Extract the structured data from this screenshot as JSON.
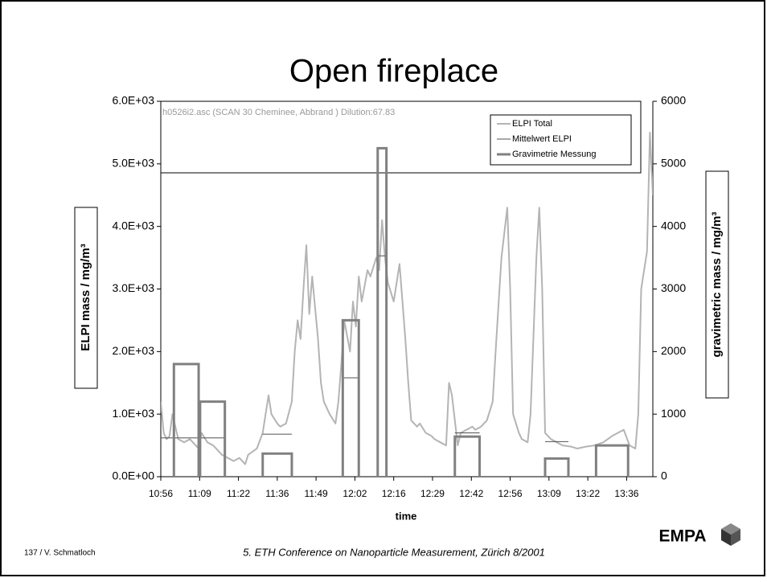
{
  "slide": {
    "title": "Open fireplace",
    "footer_left": "137 / V. Schmatloch",
    "footer_center": "5. ETH Conference on Nanoparticle Measurement, Zürich 8/2001",
    "logo_text": "EMPA"
  },
  "chart_data": {
    "type": "line",
    "annotation": "h0526i2.asc (SCAN 30 Cheminee, Abbrand ) Dilution:67.83",
    "x_label": "time",
    "y_label": "ELPI mass / mg/m³",
    "y2_label": "gravimetric mass / mg/m³",
    "xlim": [
      656,
      825
    ],
    "xticks": [
      {
        "value": 656,
        "label": "10:56"
      },
      {
        "value": 669.33,
        "label": "11:09"
      },
      {
        "value": 682.67,
        "label": "11:22"
      },
      {
        "value": 696,
        "label": "11:36"
      },
      {
        "value": 709.33,
        "label": "11:49"
      },
      {
        "value": 722.67,
        "label": "12:02"
      },
      {
        "value": 736,
        "label": "12:16"
      },
      {
        "value": 749.33,
        "label": "12:29"
      },
      {
        "value": 762.67,
        "label": "12:42"
      },
      {
        "value": 776,
        "label": "12:56"
      },
      {
        "value": 789.33,
        "label": "13:09"
      },
      {
        "value": 802.67,
        "label": "13:22"
      },
      {
        "value": 816,
        "label": "13:36"
      }
    ],
    "ylim": [
      0,
      6000
    ],
    "yticks": [
      {
        "value": 0,
        "label": "0.0E+00"
      },
      {
        "value": 1000,
        "label": "1.0E+03"
      },
      {
        "value": 2000,
        "label": "2.0E+03"
      },
      {
        "value": 3000,
        "label": "3.0E+03"
      },
      {
        "value": 4000,
        "label": "4.0E+03"
      },
      {
        "value": 5000,
        "label": "5.0E+03"
      },
      {
        "value": 6000,
        "label": "6.0E+03"
      }
    ],
    "y2lim": [
      0,
      6000
    ],
    "y2ticks": [
      0,
      1000,
      2000,
      3000,
      4000,
      5000,
      6000
    ],
    "legend": "top-right",
    "series": [
      {
        "name": "ELPI Total",
        "color": "#b4b4b4",
        "style": "line",
        "x": [
          656,
          657,
          658,
          659,
          660,
          662,
          664,
          666,
          668,
          669,
          670,
          672,
          674,
          675,
          677,
          679,
          681,
          683,
          685,
          686,
          689,
          691,
          693,
          694,
          696,
          697,
          699,
          701,
          702,
          703,
          704,
          705,
          706,
          707,
          708,
          710,
          711,
          712,
          714,
          716,
          717,
          718,
          719,
          721,
          722,
          723,
          724,
          725,
          727,
          728,
          730,
          731,
          732,
          733,
          734,
          736,
          738,
          739,
          740,
          741,
          742,
          744,
          745,
          747,
          749,
          750,
          752,
          754,
          755,
          756,
          758,
          759,
          761,
          763,
          764,
          766,
          768,
          770,
          771,
          773,
          775,
          776,
          777,
          779,
          780,
          782,
          783,
          785,
          786,
          787,
          788,
          790,
          792,
          794,
          797,
          799,
          802,
          805,
          808,
          811,
          813,
          815,
          817,
          819,
          820,
          821,
          823,
          824,
          825
        ],
        "values": [
          1200,
          700,
          600,
          650,
          1000,
          600,
          550,
          600,
          500,
          450,
          700,
          550,
          500,
          450,
          350,
          300,
          250,
          300,
          200,
          350,
          450,
          700,
          1300,
          1000,
          850,
          800,
          850,
          1200,
          2000,
          2500,
          2200,
          3000,
          3700,
          2600,
          3200,
          2200,
          1500,
          1200,
          1000,
          850,
          1200,
          1800,
          2500,
          2000,
          2800,
          2400,
          3200,
          2800,
          3300,
          3200,
          3500,
          3300,
          4100,
          3500,
          3100,
          2800,
          3400,
          2800,
          2200,
          1500,
          900,
          800,
          850,
          700,
          650,
          600,
          550,
          500,
          1500,
          1300,
          500,
          700,
          750,
          800,
          750,
          800,
          900,
          1200,
          2000,
          3500,
          4300,
          3000,
          1000,
          700,
          600,
          550,
          1000,
          3500,
          4300,
          3000,
          700,
          600,
          550,
          500,
          480,
          450,
          480,
          500,
          550,
          650,
          700,
          750,
          500,
          450,
          1000,
          3000,
          3600,
          5500,
          4500
        ]
      },
      {
        "name": "Mittelwert  ELPI",
        "color": "#505050",
        "style": "segments",
        "start": [
          656,
          669.5,
          691,
          718.5,
          730.5,
          757,
          788,
          805.5
        ],
        "end": [
          669,
          678,
          701,
          724,
          733.5,
          765.5,
          796,
          816.5
        ],
        "values": [
          620,
          620,
          680,
          1580,
          3530,
          700,
          560,
          500
        ]
      },
      {
        "name": "Gravimetrie Messung",
        "color": "#808080",
        "style": "bars",
        "axis": "y2",
        "start": [
          660.5,
          669.5,
          691,
          718.5,
          730.5,
          757,
          788,
          805.5
        ],
        "end": [
          669,
          678,
          701,
          724,
          733.5,
          765.5,
          796,
          816.5
        ],
        "values": [
          1800,
          1200,
          370,
          2500,
          5250,
          640,
          290,
          500
        ]
      }
    ]
  }
}
